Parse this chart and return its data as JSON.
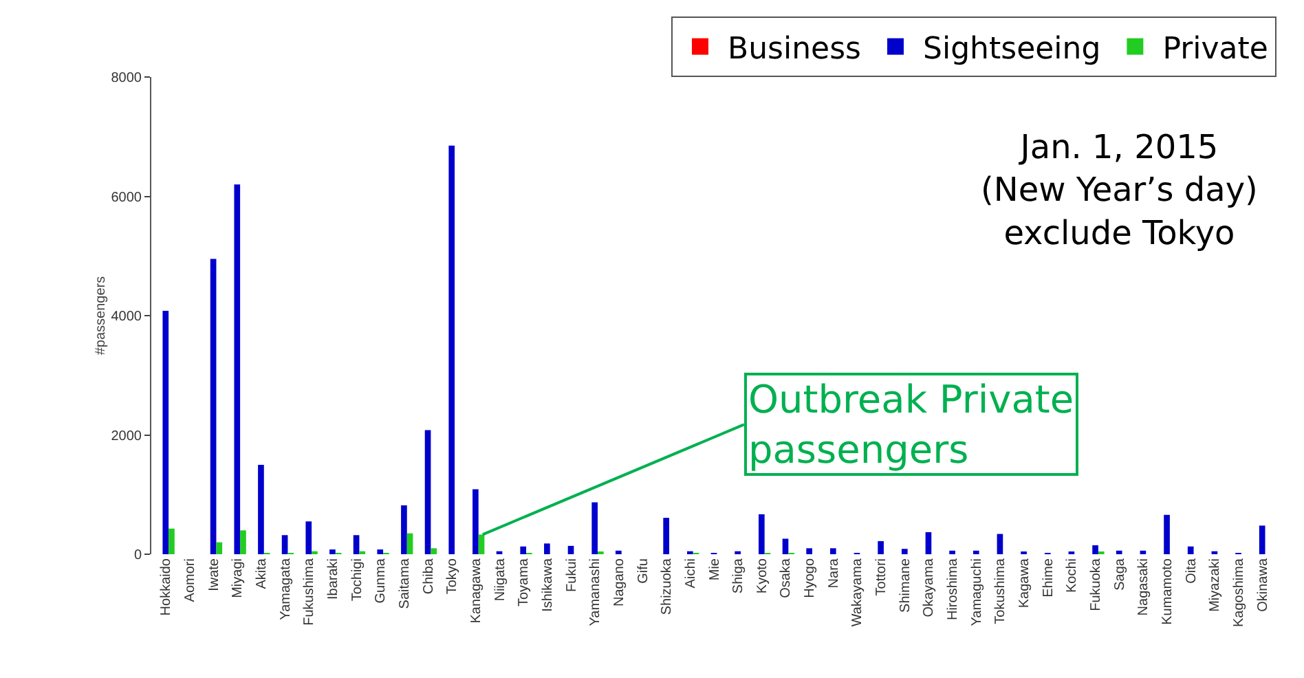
{
  "chart_data": {
    "type": "bar",
    "ylabel": "#passengers",
    "categories": [
      "Hokkaido",
      "Aomori",
      "Iwate",
      "Miyagi",
      "Akita",
      "Yamagata",
      "Fukushima",
      "Ibaraki",
      "Tochigi",
      "Gunma",
      "Saitama",
      "Chiba",
      "Tokyo",
      "Kanagawa",
      "Niigata",
      "Toyama",
      "Ishikawa",
      "Fukui",
      "Yamanashi",
      "Nagano",
      "Gifu",
      "Shizuoka",
      "Aichi",
      "Mie",
      "Shiga",
      "Kyoto",
      "Osaka",
      "Hyogo",
      "Nara",
      "Wakayama",
      "Tottori",
      "Shimane",
      "Okayama",
      "Hiroshima",
      "Yamaguchi",
      "Tokushima",
      "Kagawa",
      "Ehime",
      "Kochi",
      "Fukuoka",
      "Saga",
      "Nagasaki",
      "Kumamoto",
      "Oita",
      "Miyazaki",
      "Kagoshima",
      "Okinawa"
    ],
    "series": [
      {
        "name": "Business",
        "color": "#ff0000",
        "values": [
          0,
          0,
          0,
          0,
          0,
          0,
          0,
          0,
          0,
          0,
          0,
          0,
          0,
          0,
          0,
          0,
          0,
          0,
          0,
          0,
          0,
          0,
          0,
          0,
          0,
          0,
          0,
          0,
          0,
          0,
          0,
          0,
          0,
          0,
          0,
          0,
          0,
          0,
          0,
          0,
          0,
          0,
          0,
          0,
          0,
          0,
          0
        ]
      },
      {
        "name": "Sightseeing",
        "color": "#0000cc",
        "values": [
          4080,
          0,
          4950,
          6200,
          1500,
          320,
          550,
          80,
          320,
          80,
          820,
          2080,
          6850,
          1090,
          50,
          130,
          180,
          140,
          870,
          60,
          0,
          610,
          50,
          10,
          50,
          670,
          260,
          100,
          100,
          20,
          220,
          90,
          370,
          60,
          60,
          340,
          30,
          10,
          30,
          150,
          60,
          60,
          660,
          130,
          50,
          10,
          480
        ]
      },
      {
        "name": "Private",
        "color": "#22cc22",
        "values": [
          430,
          0,
          200,
          400,
          20,
          10,
          50,
          10,
          50,
          20,
          350,
          100,
          0,
          330,
          0,
          10,
          0,
          0,
          40,
          0,
          0,
          0,
          10,
          0,
          0,
          20,
          10,
          0,
          0,
          0,
          0,
          0,
          0,
          0,
          0,
          0,
          0,
          0,
          0,
          40,
          0,
          0,
          0,
          0,
          0,
          0,
          0
        ]
      }
    ],
    "ylim": [
      0,
      8000
    ],
    "yticks": [
      0,
      2000,
      4000,
      6000,
      8000
    ],
    "grid": false,
    "legend": "top right",
    "annotations": [
      "Jan. 1, 2015\n(New Year’s day)\nexclude Tokyo",
      {
        "text": "Outbreak Private passengers",
        "x": "Kanagawa",
        "y": 330
      }
    ]
  }
}
